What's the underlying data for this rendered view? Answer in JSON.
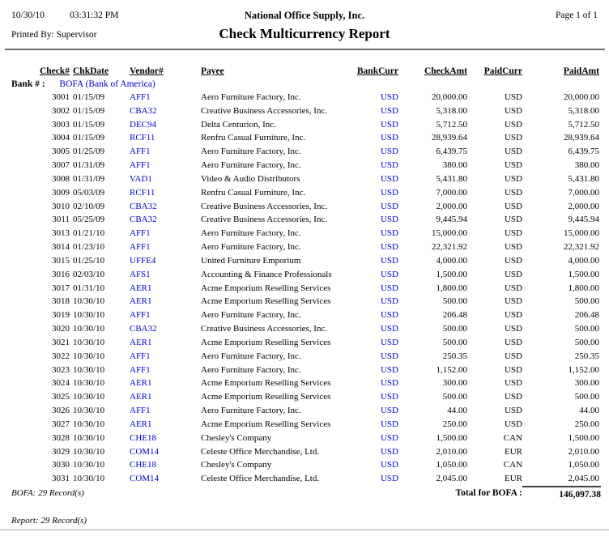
{
  "colors": {
    "accent_blue": "#0000CC"
  },
  "header": {
    "date": "10/30/10",
    "time": "03:31:32 PM",
    "company": "National Office Supply, Inc.",
    "page": "Page 1 of 1",
    "printed_by_label": "Printed By:",
    "printed_by": "Supervisor",
    "title": "Check Multicurrency Report"
  },
  "table": {
    "headers": {
      "check_no": "Check#",
      "chk_date": "ChkDate",
      "vendor": "Vendor#",
      "payee": "Payee",
      "bank_curr": "BankCurr",
      "check_amt": "CheckAmt",
      "paid_curr": "PaidCurr",
      "paid_amt": "PaidAmt"
    },
    "bank_label": "Bank # :",
    "bank_value": "BOFA (Bank of America)",
    "rows": [
      {
        "check_no": "3001",
        "chk_date": "01/15/09",
        "vendor": "AFF1",
        "payee": "Aero Furniture Factory, Inc.",
        "bank_curr": "USD",
        "check_amt": "20,000.00",
        "paid_curr": "USD",
        "paid_amt": "20,000.00"
      },
      {
        "check_no": "3002",
        "chk_date": "01/15/09",
        "vendor": "CBA32",
        "payee": "Creative Business Accessories, Inc.",
        "bank_curr": "USD",
        "check_amt": "5,318.00",
        "paid_curr": "USD",
        "paid_amt": "5,318.00"
      },
      {
        "check_no": "3003",
        "chk_date": "01/15/09",
        "vendor": "DEC94",
        "payee": "Delta Centurion, Inc.",
        "bank_curr": "USD",
        "check_amt": "5,712.50",
        "paid_curr": "USD",
        "paid_amt": "5,712.50"
      },
      {
        "check_no": "3004",
        "chk_date": "01/15/09",
        "vendor": "RCF11",
        "payee": "Renfru Casual Furniture, Inc.",
        "bank_curr": "USD",
        "check_amt": "28,939.64",
        "paid_curr": "USD",
        "paid_amt": "28,939.64"
      },
      {
        "check_no": "3005",
        "chk_date": "01/25/09",
        "vendor": "AFF1",
        "payee": "Aero Furniture Factory, Inc.",
        "bank_curr": "USD",
        "check_amt": "6,439.75",
        "paid_curr": "USD",
        "paid_amt": "6,439.75"
      },
      {
        "check_no": "3007",
        "chk_date": "01/31/09",
        "vendor": "AFF1",
        "payee": "Aero Furniture Factory, Inc.",
        "bank_curr": "USD",
        "check_amt": "380.00",
        "paid_curr": "USD",
        "paid_amt": "380.00"
      },
      {
        "check_no": "3008",
        "chk_date": "01/31/09",
        "vendor": "VAD1",
        "payee": "Video & Audio Distributors",
        "bank_curr": "USD",
        "check_amt": "5,431.80",
        "paid_curr": "USD",
        "paid_amt": "5,431.80"
      },
      {
        "check_no": "3009",
        "chk_date": "05/03/09",
        "vendor": "RCF11",
        "payee": "Renfru Casual Furniture, Inc.",
        "bank_curr": "USD",
        "check_amt": "7,000.00",
        "paid_curr": "USD",
        "paid_amt": "7,000.00"
      },
      {
        "check_no": "3010",
        "chk_date": "02/10/09",
        "vendor": "CBA32",
        "payee": "Creative Business Accessories, Inc.",
        "bank_curr": "USD",
        "check_amt": "2,000.00",
        "paid_curr": "USD",
        "paid_amt": "2,000.00"
      },
      {
        "check_no": "3011",
        "chk_date": "05/25/09",
        "vendor": "CBA32",
        "payee": "Creative Business Accessories, Inc.",
        "bank_curr": "USD",
        "check_amt": "9,445.94",
        "paid_curr": "USD",
        "paid_amt": "9,445.94"
      },
      {
        "check_no": "3013",
        "chk_date": "01/21/10",
        "vendor": "AFF1",
        "payee": "Aero Furniture Factory, Inc.",
        "bank_curr": "USD",
        "check_amt": "15,000.00",
        "paid_curr": "USD",
        "paid_amt": "15,000.00"
      },
      {
        "check_no": "3014",
        "chk_date": "01/23/10",
        "vendor": "AFF1",
        "payee": "Aero Furniture Factory, Inc.",
        "bank_curr": "USD",
        "check_amt": "22,321.92",
        "paid_curr": "USD",
        "paid_amt": "22,321.92"
      },
      {
        "check_no": "3015",
        "chk_date": "01/25/10",
        "vendor": "UFFE4",
        "payee": "United Furniture Emporium",
        "bank_curr": "USD",
        "check_amt": "4,000.00",
        "paid_curr": "USD",
        "paid_amt": "4,000.00"
      },
      {
        "check_no": "3016",
        "chk_date": "02/03/10",
        "vendor": "AFS1",
        "payee": "Accounting & Finance Professionals",
        "bank_curr": "USD",
        "check_amt": "1,500.00",
        "paid_curr": "USD",
        "paid_amt": "1,500.00"
      },
      {
        "check_no": "3017",
        "chk_date": "01/31/10",
        "vendor": "AER1",
        "payee": "Acme Emporium Reselling Services",
        "bank_curr": "USD",
        "check_amt": "1,800.00",
        "paid_curr": "USD",
        "paid_amt": "1,800.00"
      },
      {
        "check_no": "3018",
        "chk_date": "10/30/10",
        "vendor": "AER1",
        "payee": "Acme Emporium Reselling Services",
        "bank_curr": "USD",
        "check_amt": "500.00",
        "paid_curr": "USD",
        "paid_amt": "500.00"
      },
      {
        "check_no": "3019",
        "chk_date": "10/30/10",
        "vendor": "AFF1",
        "payee": "Aero Furniture Factory, Inc.",
        "bank_curr": "USD",
        "check_amt": "206.48",
        "paid_curr": "USD",
        "paid_amt": "206.48"
      },
      {
        "check_no": "3020",
        "chk_date": "10/30/10",
        "vendor": "CBA32",
        "payee": "Creative Business Accessories, Inc.",
        "bank_curr": "USD",
        "check_amt": "500.00",
        "paid_curr": "USD",
        "paid_amt": "500.00"
      },
      {
        "check_no": "3021",
        "chk_date": "10/30/10",
        "vendor": "AER1",
        "payee": "Acme Emporium Reselling Services",
        "bank_curr": "USD",
        "check_amt": "500.00",
        "paid_curr": "USD",
        "paid_amt": "500.00"
      },
      {
        "check_no": "3022",
        "chk_date": "10/30/10",
        "vendor": "AFF1",
        "payee": "Aero Furniture Factory, Inc.",
        "bank_curr": "USD",
        "check_amt": "250.35",
        "paid_curr": "USD",
        "paid_amt": "250.35"
      },
      {
        "check_no": "3023",
        "chk_date": "10/30/10",
        "vendor": "AFF1",
        "payee": "Aero Furniture Factory, Inc.",
        "bank_curr": "USD",
        "check_amt": "1,152.00",
        "paid_curr": "USD",
        "paid_amt": "1,152.00"
      },
      {
        "check_no": "3024",
        "chk_date": "10/30/10",
        "vendor": "AER1",
        "payee": "Acme Emporium Reselling Services",
        "bank_curr": "USD",
        "check_amt": "300.00",
        "paid_curr": "USD",
        "paid_amt": "300.00"
      },
      {
        "check_no": "3025",
        "chk_date": "10/30/10",
        "vendor": "AER1",
        "payee": "Acme Emporium Reselling Services",
        "bank_curr": "USD",
        "check_amt": "500.00",
        "paid_curr": "USD",
        "paid_amt": "500.00"
      },
      {
        "check_no": "3026",
        "chk_date": "10/30/10",
        "vendor": "AFF1",
        "payee": "Aero Furniture Factory, Inc.",
        "bank_curr": "USD",
        "check_amt": "44.00",
        "paid_curr": "USD",
        "paid_amt": "44.00"
      },
      {
        "check_no": "3027",
        "chk_date": "10/30/10",
        "vendor": "AER1",
        "payee": "Acme Emporium Reselling Services",
        "bank_curr": "USD",
        "check_amt": "250.00",
        "paid_curr": "USD",
        "paid_amt": "250.00"
      },
      {
        "check_no": "3028",
        "chk_date": "10/30/10",
        "vendor": "CHE18",
        "payee": "Chesley's Company",
        "bank_curr": "USD",
        "check_amt": "1,500.00",
        "paid_curr": "CAN",
        "paid_amt": "1,500.00"
      },
      {
        "check_no": "3029",
        "chk_date": "10/30/10",
        "vendor": "COM14",
        "payee": "Celeste Office Merchandise, Ltd.",
        "bank_curr": "USD",
        "check_amt": "2,010.00",
        "paid_curr": "EUR",
        "paid_amt": "2,010.00"
      },
      {
        "check_no": "3030",
        "chk_date": "10/30/10",
        "vendor": "CHE18",
        "payee": "Chesley's Company",
        "bank_curr": "USD",
        "check_amt": "1,050.00",
        "paid_curr": "CAN",
        "paid_amt": "1,050.00"
      },
      {
        "check_no": "3031",
        "chk_date": "10/30/10",
        "vendor": "COM14",
        "payee": "Celeste Office Merchandise, Ltd.",
        "bank_curr": "USD",
        "check_amt": "2,045.00",
        "paid_curr": "EUR",
        "paid_amt": "2,045.00"
      }
    ]
  },
  "footer": {
    "group_count": "BOFA: 29 Record(s)",
    "total_label": "Total for BOFA :",
    "total_amount": "146,097.38",
    "report_count": "Report: 29 Record(s)"
  }
}
